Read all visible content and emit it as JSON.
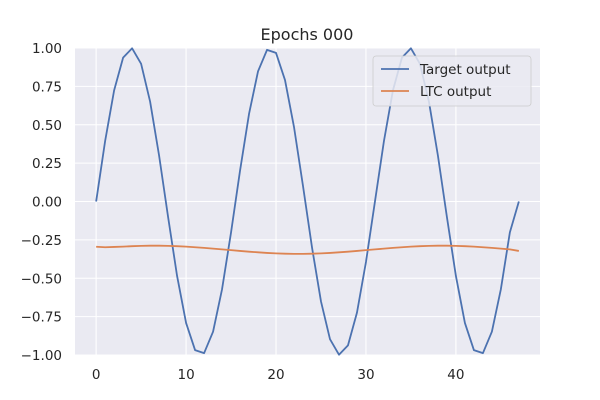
{
  "chart_data": {
    "type": "line",
    "title": "Epochs 000",
    "xlabel": "",
    "ylabel": "",
    "xlim": [
      -2.35,
      49.35
    ],
    "ylim": [
      -1.0,
      1.0
    ],
    "x_ticks": [
      0,
      10,
      20,
      30,
      40
    ],
    "x_tick_labels": [
      "0",
      "10",
      "20",
      "30",
      "40"
    ],
    "y_ticks": [
      1.0,
      0.75,
      0.5,
      0.25,
      0.0,
      -0.25,
      -0.5,
      -0.75,
      -1.0
    ],
    "y_tick_labels": [
      "1.00",
      "0.75",
      "0.50",
      "0.25",
      "0.00",
      "−0.25",
      "−0.50",
      "−0.75",
      "−1.00"
    ],
    "grid": true,
    "legend_position": "top-right",
    "series": [
      {
        "name": "Target output",
        "color": "#4c72b0",
        "x": [
          0,
          1,
          2,
          3,
          4,
          5,
          6,
          7,
          8,
          9,
          10,
          11,
          12,
          13,
          14,
          15,
          16,
          17,
          18,
          19,
          20,
          21,
          22,
          23,
          24,
          25,
          26,
          27,
          28,
          29,
          30,
          31,
          32,
          33,
          34,
          35,
          36,
          37,
          38,
          39,
          40,
          41,
          42,
          43,
          44,
          45,
          46,
          47
        ],
        "values": [
          0.0,
          0.394,
          0.724,
          0.937,
          0.998,
          0.897,
          0.651,
          0.299,
          -0.101,
          -0.485,
          -0.791,
          -0.968,
          -0.988,
          -0.848,
          -0.571,
          -0.201,
          0.201,
          0.571,
          0.848,
          0.988,
          0.968,
          0.791,
          0.485,
          0.101,
          -0.299,
          -0.651,
          -0.897,
          -0.998,
          -0.937,
          -0.724,
          -0.394,
          0.0,
          0.394,
          0.724,
          0.937,
          0.998,
          0.897,
          0.651,
          0.299,
          -0.101,
          -0.485,
          -0.791,
          -0.968,
          -0.988,
          -0.848,
          -0.571,
          -0.201,
          0.0
        ]
      },
      {
        "name": "LTC output",
        "color": "#dd8452",
        "x": [
          0,
          1,
          2,
          3,
          4,
          5,
          6,
          7,
          8,
          9,
          10,
          11,
          12,
          13,
          14,
          15,
          16,
          17,
          18,
          19,
          20,
          21,
          22,
          23,
          24,
          25,
          26,
          27,
          28,
          29,
          30,
          31,
          32,
          33,
          34,
          35,
          36,
          37,
          38,
          39,
          40,
          41,
          42,
          43,
          44,
          45,
          46,
          47
        ],
        "values": [
          -0.295,
          -0.298,
          -0.296,
          -0.294,
          -0.291,
          -0.289,
          -0.288,
          -0.288,
          -0.289,
          -0.291,
          -0.294,
          -0.298,
          -0.302,
          -0.307,
          -0.312,
          -0.317,
          -0.322,
          -0.327,
          -0.331,
          -0.335,
          -0.338,
          -0.34,
          -0.341,
          -0.341,
          -0.34,
          -0.338,
          -0.335,
          -0.331,
          -0.327,
          -0.322,
          -0.317,
          -0.312,
          -0.307,
          -0.302,
          -0.298,
          -0.294,
          -0.291,
          -0.289,
          -0.288,
          -0.288,
          -0.289,
          -0.291,
          -0.294,
          -0.298,
          -0.302,
          -0.307,
          -0.312,
          -0.322
        ]
      }
    ]
  }
}
